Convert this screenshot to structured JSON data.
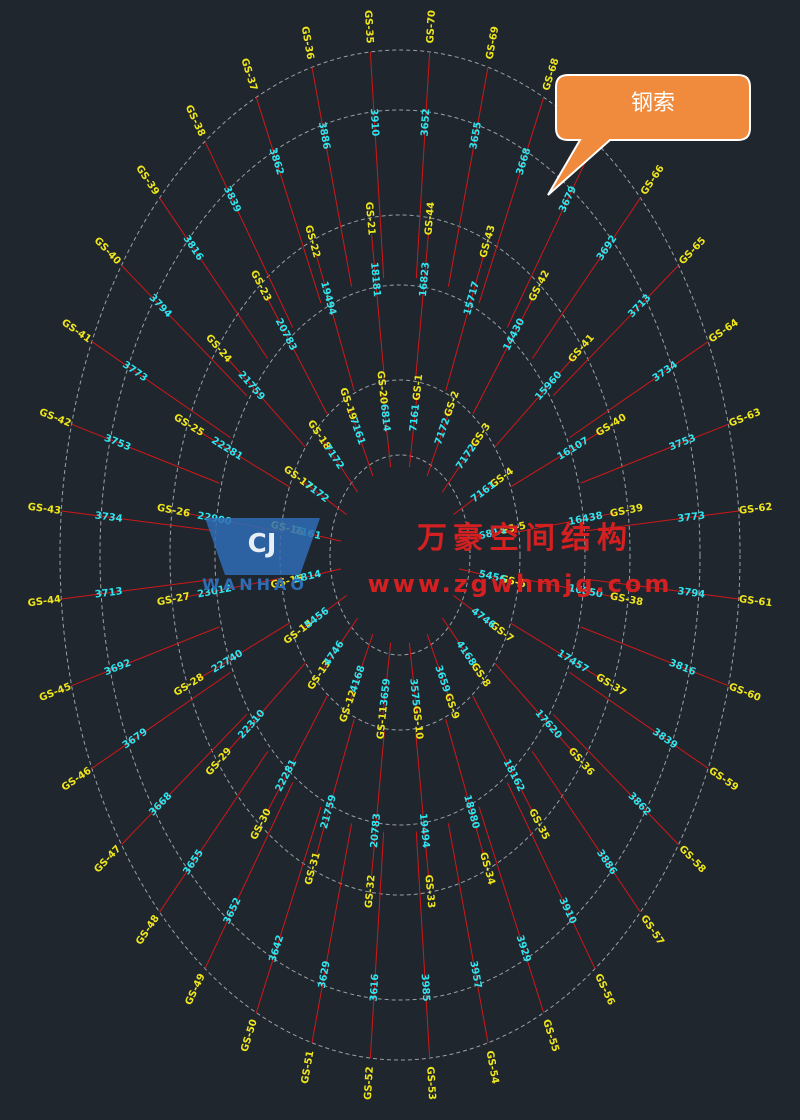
{
  "callout": {
    "label": "钢索"
  },
  "watermark": {
    "brand": "WANHAO",
    "name": "万豪空间结构",
    "url": "www.zgwhmjg.com"
  },
  "rings": [
    {
      "scale": 1.0,
      "cables": [
        "GS-70",
        "GS-69",
        "GS-68",
        "GS-67",
        "GS-66",
        "GS-65",
        "GS-64",
        "GS-63",
        "GS-62",
        "GS-61",
        "GS-60",
        "GS-59",
        "GS-58",
        "GS-57",
        "GS-56",
        "GS-55",
        "GS-54",
        "GS-53",
        "GS-52",
        "GS-51",
        "GS-50",
        "GS-49",
        "GS-48",
        "GS-47",
        "GS-46",
        "GS-45",
        "GS-44",
        "GS-43",
        "GS-42",
        "GS-41",
        "GS-40",
        "GS-39",
        "GS-38",
        "GS-37",
        "GS-36",
        "GS-35"
      ],
      "lengths": [
        "3652",
        "3655",
        "3668",
        "3679",
        "3692",
        "3713",
        "3734",
        "3753",
        "3773",
        "3794",
        "3816",
        "3839",
        "3862",
        "3886",
        "3910",
        "3929",
        "3957",
        "3985",
        "3616",
        "3629",
        "3642",
        "3652",
        "3655",
        "3668",
        "3679",
        "3692",
        "3713",
        "3734",
        "3753",
        "3773",
        "3794",
        "3816",
        "3839",
        "3862",
        "3886",
        "3910"
      ]
    },
    {
      "scale": 0.64,
      "cables": [
        "GS-44",
        "GS-43",
        "GS-42",
        "GS-41",
        "GS-40",
        "GS-39",
        "GS-38",
        "GS-37",
        "GS-36",
        "GS-35",
        "GS-34",
        "GS-33",
        "GS-32",
        "GS-31",
        "GS-30",
        "GS-29",
        "GS-28",
        "GS-27",
        "GS-26",
        "GS-25",
        "GS-24",
        "GS-23",
        "GS-22",
        "GS-21"
      ],
      "lengths": [
        "16823",
        "15717",
        "14430",
        "15960",
        "16107",
        "16438",
        "16850",
        "17457",
        "17620",
        "18162",
        "18980",
        "19494",
        "20783",
        "21759",
        "22281",
        "22310",
        "22740",
        "23012",
        "22900",
        "22281",
        "21759",
        "20783",
        "19494",
        "18181"
      ]
    },
    {
      "scale": 0.32,
      "cables": [
        "GS-1",
        "GS-2",
        "GS-3",
        "GS-4",
        "GS-5",
        "GS-6",
        "GS-7",
        "GS-8",
        "GS-9",
        "GS-10",
        "GS-11",
        "GS-12",
        "GS-13",
        "GS-14",
        "GS-15",
        "GS-16",
        "GS-17",
        "GS-18",
        "GS-19",
        "GS-20"
      ],
      "lengths": [
        "7161",
        "7172",
        "7172",
        "7161",
        "6814",
        "5456",
        "4746",
        "4168",
        "3659",
        "3575",
        "3659",
        "4168",
        "4746",
        "5456",
        "6814",
        "7161",
        "7172",
        "7172",
        "7161",
        "6814"
      ]
    }
  ]
}
